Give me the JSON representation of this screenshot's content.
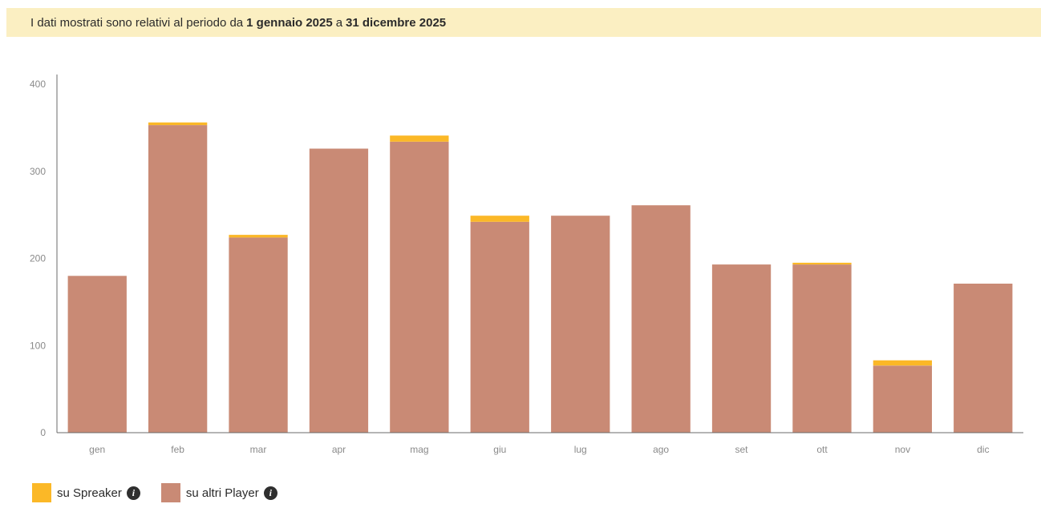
{
  "banner": {
    "prefix": "I dati mostrati sono relativi al periodo da",
    "start": "1 gennaio 2025",
    "middle": "a",
    "end": "31 dicembre 2025"
  },
  "legend": {
    "spreaker_label": "su Spreaker",
    "altri_label": "su altri Player",
    "info_icon": "info-icon"
  },
  "colors": {
    "spreaker": "#fbb827",
    "altri": "#c98a75",
    "axis": "#6b6b6b",
    "tick_text": "#8a8a8a"
  },
  "chart_data": {
    "type": "bar",
    "stacked": true,
    "title": "",
    "xlabel": "",
    "ylabel": "",
    "categories": [
      "gen",
      "feb",
      "mar",
      "apr",
      "mag",
      "giu",
      "lug",
      "ago",
      "set",
      "ott",
      "nov",
      "dic"
    ],
    "series": [
      {
        "name": "su altri Player",
        "color": "#c98a75",
        "values": [
          180,
          353,
          224,
          326,
          334,
          242,
          249,
          261,
          193,
          193,
          77,
          171
        ]
      },
      {
        "name": "su Spreaker",
        "color": "#fbb827",
        "values": [
          0,
          3,
          3,
          0,
          7,
          7,
          0,
          0,
          0,
          2,
          6,
          0
        ]
      }
    ],
    "yticks": [
      0,
      100,
      200,
      300,
      400
    ],
    "ylim": [
      0,
      400
    ],
    "grid": false,
    "legend_position": "bottom-left"
  }
}
